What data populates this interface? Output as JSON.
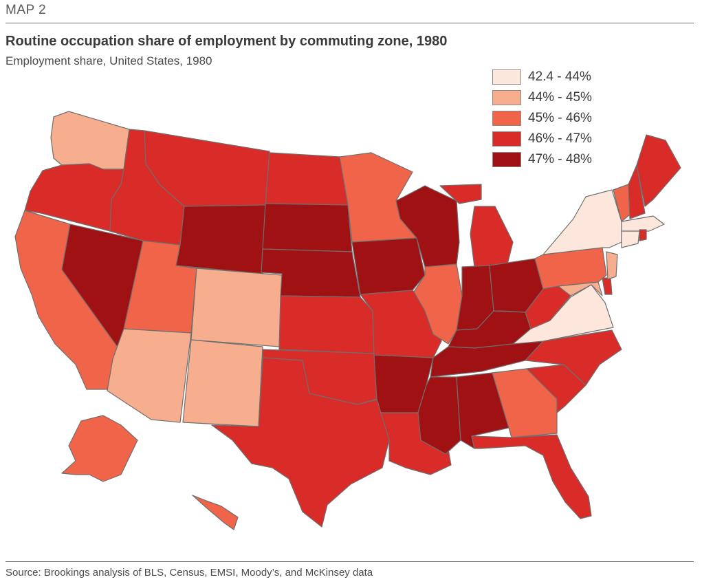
{
  "header": {
    "kicker": "MAP 2",
    "title": "Routine occupation share of employment by commuting zone, 1980",
    "subtitle": "Employment share, United States, 1980"
  },
  "legend": {
    "items": [
      {
        "label": "42.4 - 44%",
        "color": "#fde7dc"
      },
      {
        "label": "44% - 45%",
        "color": "#f6ae8e"
      },
      {
        "label": "45% - 46%",
        "color": "#f0644a"
      },
      {
        "label": "46% - 47%",
        "color": "#d92b27"
      },
      {
        "label": "47% - 48%",
        "color": "#a01114"
      }
    ]
  },
  "map": {
    "border_color": "#6f6f6f"
  },
  "footer": {
    "source": "Source: Brookings analysis of BLS, Census, EMSI, Moody’s, and McKinsey data"
  }
}
